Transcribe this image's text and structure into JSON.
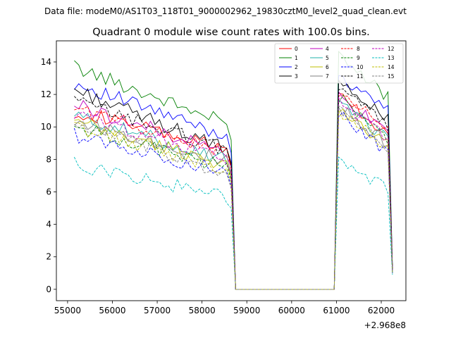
{
  "suptitle": "Data file: modeM0/AS1T03_118T01_9000002962_19830cztM0_level2_quad_clean.evt",
  "chart_data": {
    "type": "line",
    "title": "Quadrant 0 module wise count rates with 100.0s bins.",
    "xlabel": "",
    "ylabel": "",
    "x_offset_label": "+2.968e8",
    "xlim": [
      54750,
      62550
    ],
    "ylim": [
      -0.7,
      15.3
    ],
    "xticks": [
      55000,
      56000,
      57000,
      58000,
      59000,
      60000,
      61000,
      62000
    ],
    "xtick_labels": [
      "55000",
      "56000",
      "57000",
      "58000",
      "59000",
      "60000",
      "61000",
      "62000"
    ],
    "yticks": [
      0,
      2,
      4,
      6,
      8,
      10,
      12,
      14
    ],
    "ytick_labels": [
      "0",
      "2",
      "4",
      "6",
      "8",
      "10",
      "12",
      "14"
    ],
    "legend_position": "top-right",
    "segments": [
      {
        "x_start": 55150,
        "x_end": 58550,
        "step": 100
      },
      {
        "x_end_drop": 58650,
        "x_end_fall": 58750
      },
      {
        "gap_start": 58750,
        "gap_end": 60950,
        "gap_value": 0
      },
      {
        "x_start": 61050,
        "x_end": 62150,
        "step": 100
      },
      {
        "x_end_fall": 62250
      }
    ],
    "series": [
      {
        "name": "0",
        "color": "#ff0000",
        "dash": false,
        "base1": 11.0,
        "end1": 8.6,
        "drop1": 7.6,
        "base2": 12.0,
        "end2": 9.6,
        "tail": 1.2
      },
      {
        "name": "1",
        "color": "#008000",
        "dash": false,
        "base1": 13.7,
        "end1": 10.2,
        "drop1": 9.2,
        "base2": 14.3,
        "end2": 11.8,
        "tail": 1.4
      },
      {
        "name": "2",
        "color": "#0000ff",
        "dash": false,
        "base1": 12.7,
        "end1": 9.4,
        "drop1": 8.4,
        "base2": 13.2,
        "end2": 11.0,
        "tail": 1.3
      },
      {
        "name": "3",
        "color": "#000000",
        "dash": false,
        "base1": 12.3,
        "end1": 8.6,
        "drop1": 7.8,
        "base2": 13.1,
        "end2": 10.4,
        "tail": 1.2
      },
      {
        "name": "4",
        "color": "#bf00bf",
        "dash": false,
        "base1": 11.4,
        "end1": 8.4,
        "drop1": 7.6,
        "base2": 12.0,
        "end2": 9.5,
        "tail": 1.1
      },
      {
        "name": "5",
        "color": "#20b2aa",
        "dash": false,
        "base1": 10.7,
        "end1": 8.0,
        "drop1": 7.2,
        "base2": 11.4,
        "end2": 9.2,
        "tail": 1.1
      },
      {
        "name": "6",
        "color": "#bfbf00",
        "dash": false,
        "base1": 10.3,
        "end1": 7.7,
        "drop1": 6.9,
        "base2": 11.1,
        "end2": 8.9,
        "tail": 1.0
      },
      {
        "name": "7",
        "color": "#808080",
        "dash": false,
        "base1": 10.4,
        "end1": 7.9,
        "drop1": 7.0,
        "base2": 11.2,
        "end2": 9.0,
        "tail": 1.0
      },
      {
        "name": "8",
        "color": "#ff0000",
        "dash": true,
        "base1": 11.2,
        "end1": 8.4,
        "drop1": 7.4,
        "base2": 12.2,
        "end2": 9.8,
        "tail": 1.2
      },
      {
        "name": "9",
        "color": "#008000",
        "dash": true,
        "base1": 10.0,
        "end1": 7.5,
        "drop1": 6.7,
        "base2": 11.8,
        "end2": 9.2,
        "tail": 1.1
      },
      {
        "name": "10",
        "color": "#0000ff",
        "dash": true,
        "base1": 9.5,
        "end1": 7.2,
        "drop1": 6.4,
        "base2": 10.8,
        "end2": 8.4,
        "tail": 1.0
      },
      {
        "name": "11",
        "color": "#000000",
        "dash": true,
        "base1": 11.6,
        "end1": 8.6,
        "drop1": 7.7,
        "base2": 12.6,
        "end2": 10.0,
        "tail": 1.2
      },
      {
        "name": "12",
        "color": "#bf00bf",
        "dash": true,
        "base1": 10.8,
        "end1": 8.0,
        "drop1": 7.2,
        "base2": 11.6,
        "end2": 9.3,
        "tail": 1.1
      },
      {
        "name": "13",
        "color": "#00bfbf",
        "dash": true,
        "base1": 7.7,
        "end1": 5.7,
        "drop1": 5.0,
        "base2": 8.1,
        "end2": 6.1,
        "tail": 0.9
      },
      {
        "name": "14",
        "color": "#bfbf00",
        "dash": true,
        "base1": 10.0,
        "end1": 7.4,
        "drop1": 6.6,
        "base2": 11.0,
        "end2": 8.7,
        "tail": 1.0
      },
      {
        "name": "15",
        "color": "#808080",
        "dash": true,
        "base1": 10.2,
        "end1": 7.1,
        "drop1": 6.2,
        "base2": 11.0,
        "end2": 8.8,
        "tail": 1.0
      }
    ]
  }
}
